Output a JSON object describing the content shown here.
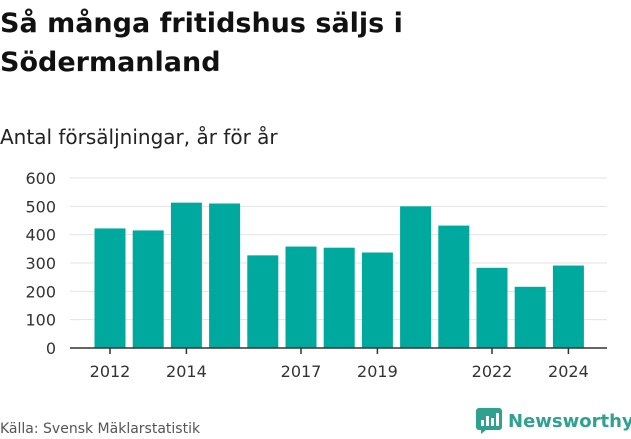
{
  "header": {
    "title": "Så många fritidshus säljs i Södermanland",
    "subtitle": "Antal försäljningar, år för år"
  },
  "footer": {
    "source": "Källa: Svensk Mäklarstatistik",
    "brand": "Newsworthy"
  },
  "icons": {
    "brand": "newsworthy-chart-logo-icon"
  },
  "colors": {
    "bar": "#00a99d",
    "grid": "#e3e3e3",
    "axis": "#333333",
    "brand": "#2ea28f"
  },
  "chart_data": {
    "type": "bar",
    "categories": [
      "2012",
      "2013",
      "2014",
      "2015",
      "2016",
      "2017",
      "2018",
      "2019",
      "2020",
      "2021",
      "2022",
      "2023",
      "2024"
    ],
    "values": [
      422,
      415,
      513,
      510,
      327,
      358,
      354,
      337,
      500,
      432,
      283,
      216,
      291
    ],
    "xticks": [
      "2012",
      "2014",
      "2017",
      "2019",
      "2022",
      "2024"
    ],
    "yticks": [
      0,
      100,
      200,
      300,
      400,
      500,
      600
    ],
    "ylim": [
      0,
      600
    ],
    "grid": true,
    "legend": "none"
  }
}
